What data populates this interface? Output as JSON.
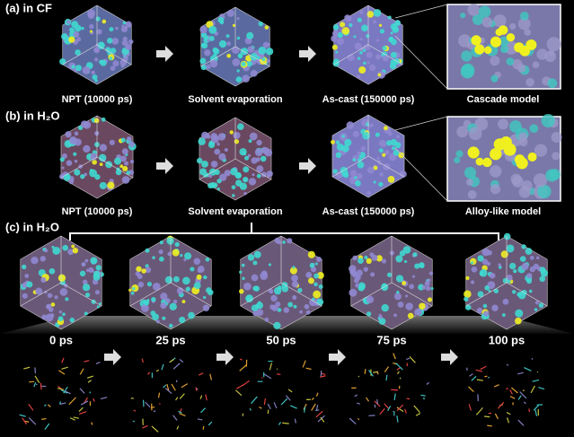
{
  "panel_a": {
    "title": "(a) in CF",
    "captions": [
      "NPT (10000 ps)",
      "Solvent  evaporation",
      "As-cast (150000 ps)",
      "Cascade model"
    ]
  },
  "panel_b": {
    "title": "(b) in H₂O",
    "captions": [
      "NPT (10000 ps)",
      "Solvent  evaporation",
      "As-cast (150000 ps)",
      "Alloy-like model"
    ]
  },
  "panel_c": {
    "title": "(c) in H₂O",
    "times": [
      "0 ps",
      "25 ps",
      "50 ps",
      "75 ps",
      "100 ps"
    ]
  }
}
